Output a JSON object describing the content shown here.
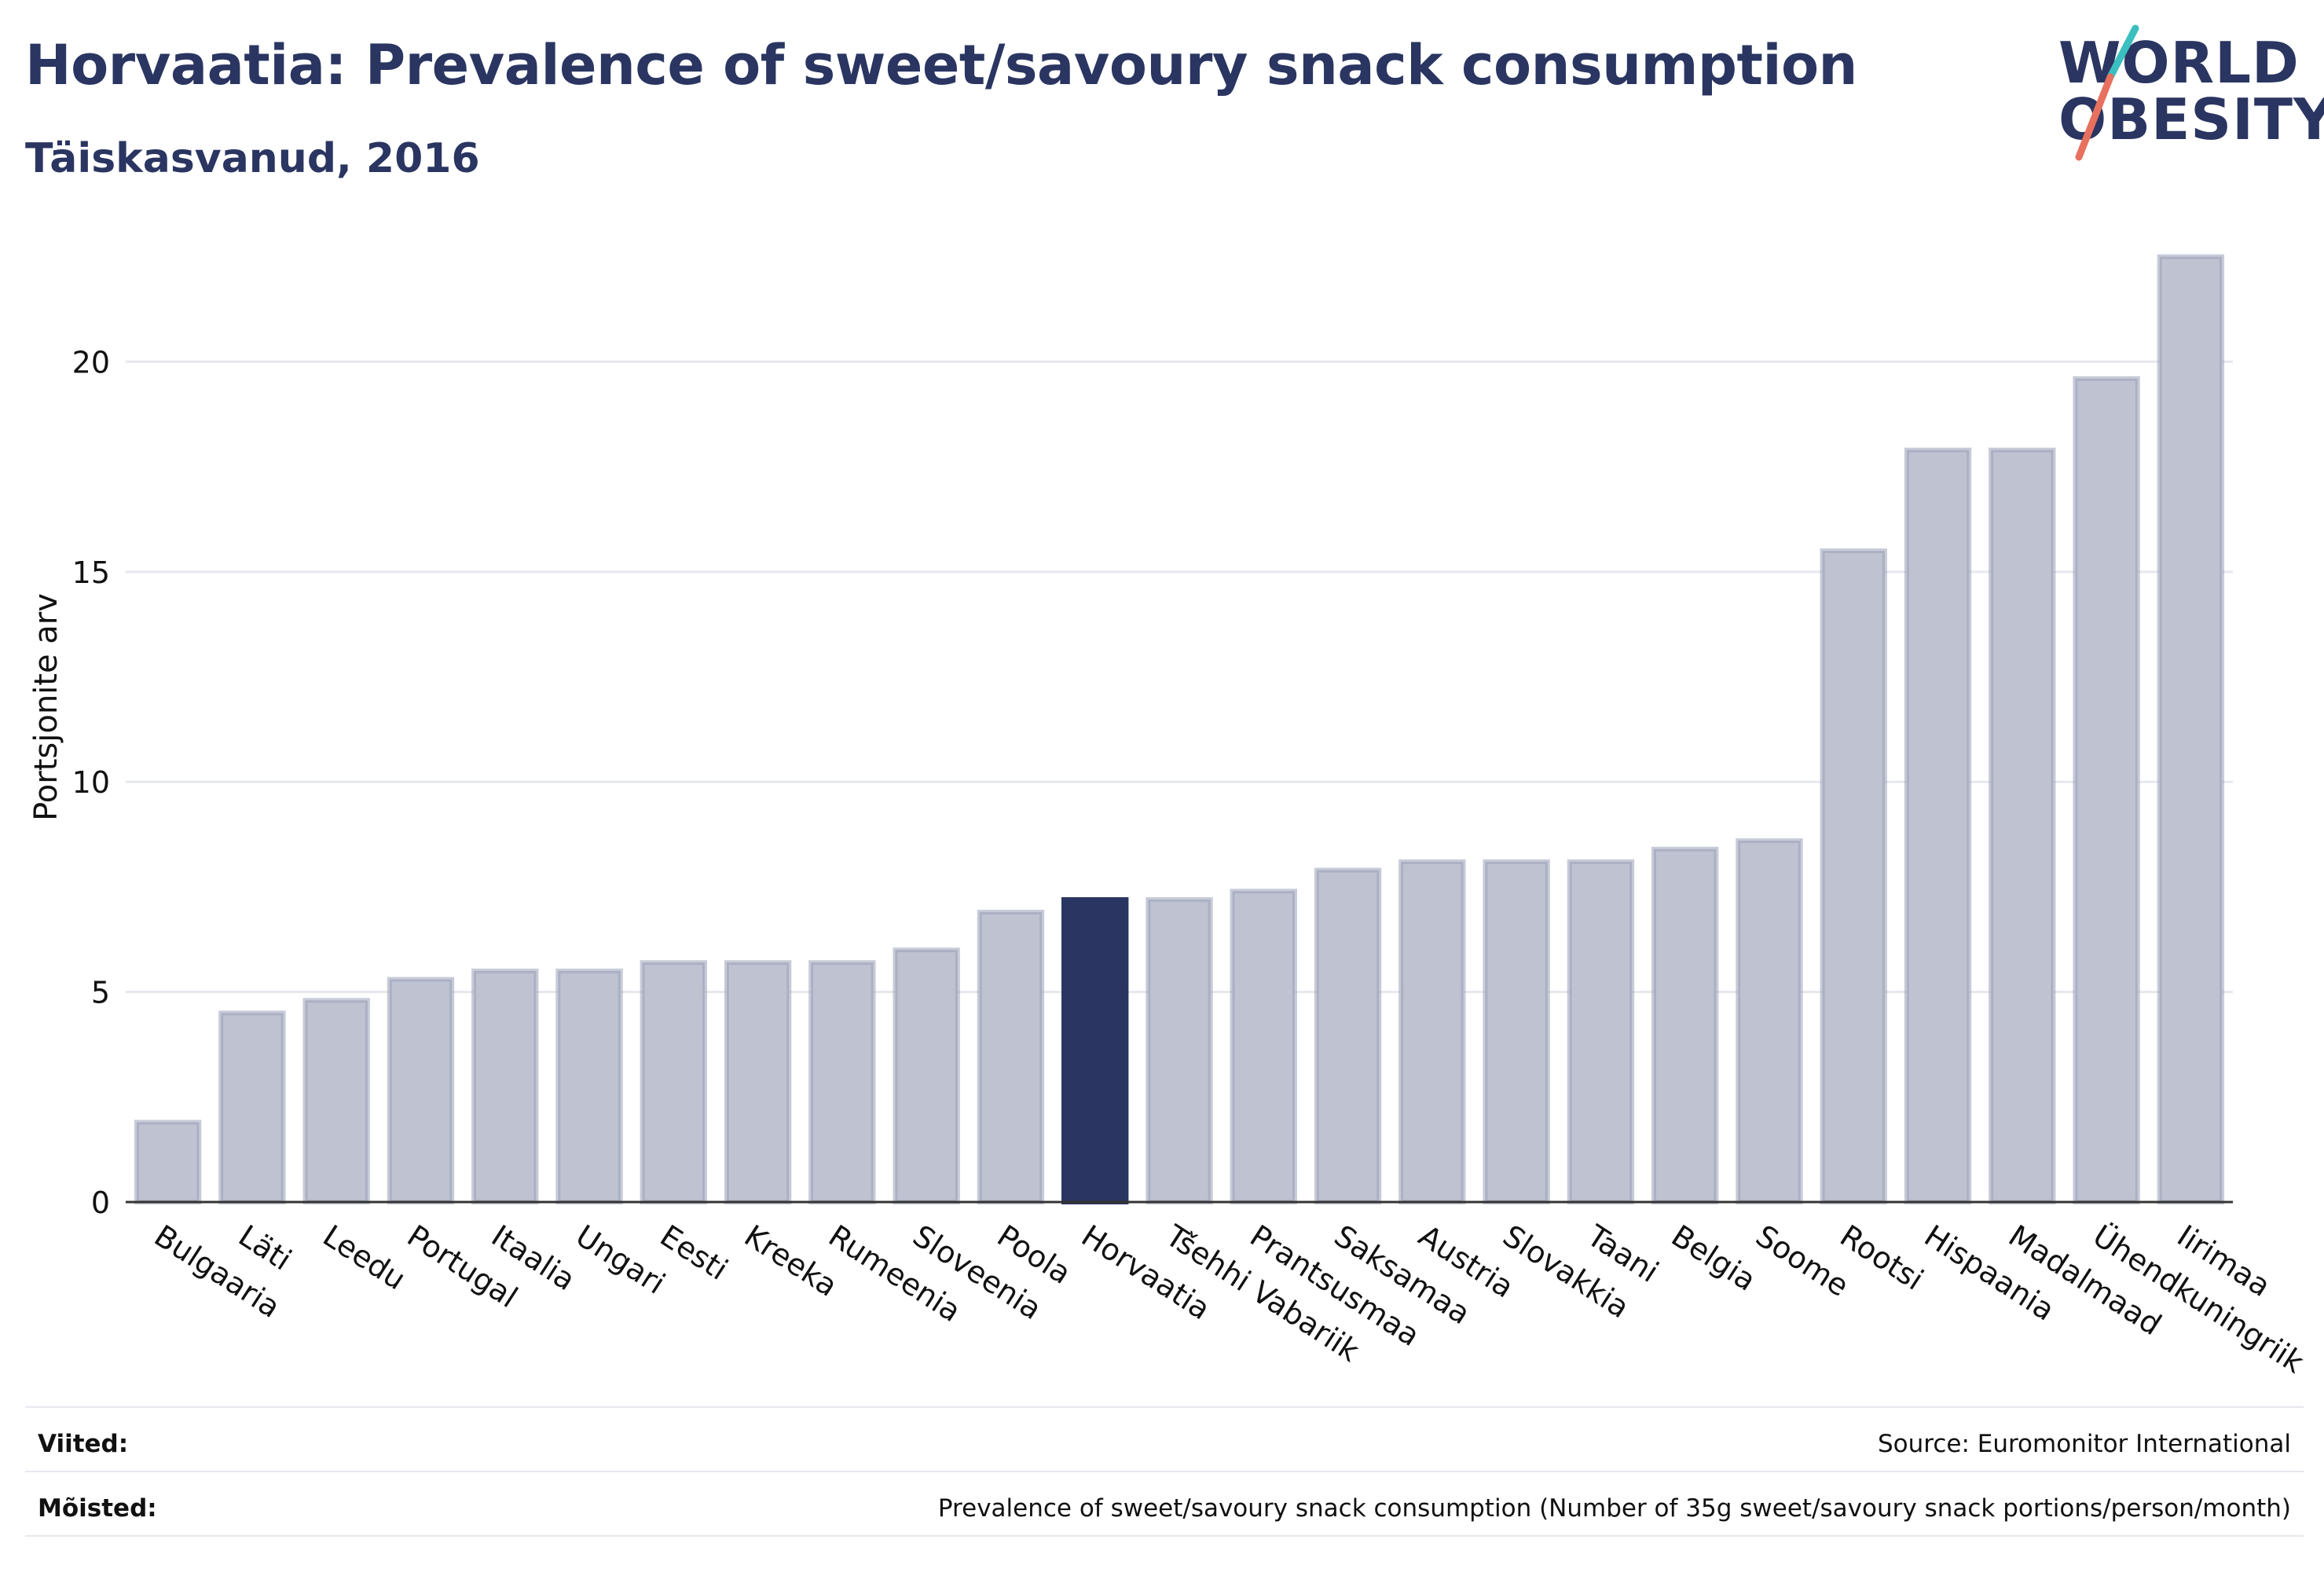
{
  "header": {
    "title": "Horvaatia: Prevalence of sweet/savoury snack consumption",
    "subtitle": "Täiskasvanud, 2016"
  },
  "logo": {
    "line1": "WORLD",
    "line2": "OBESITY"
  },
  "colors": {
    "highlight": "#2a3561",
    "bar_fill": "#bfc3d1",
    "bar_stroke": "#9aa0b8",
    "grid": "#e6e8ee",
    "axis": "#333333",
    "logo_teal": "#3bbfbf",
    "logo_coral": "#e8705f"
  },
  "chart_data": {
    "type": "bar",
    "ylabel": "Portsjonite arv",
    "ylim": [
      0,
      23
    ],
    "yticks": [
      0,
      5,
      10,
      15,
      20
    ],
    "grid": true,
    "highlight": "Horvaatia",
    "categories": [
      "Bulgaaria",
      "Läti",
      "Leedu",
      "Portugal",
      "Itaalia",
      "Ungari",
      "Eesti",
      "Kreeka",
      "Rumeenia",
      "Sloveenia",
      "Poola",
      "Horvaatia",
      "Tšehhi Vabariik",
      "Prantsusmaa",
      "Saksamaa",
      "Austria",
      "Slovakkia",
      "Taani",
      "Belgia",
      "Soome",
      "Rootsi",
      "Hispaania",
      "Madalmaad",
      "Ühendkuningriik",
      "Iirimaa"
    ],
    "values": [
      1.9,
      4.5,
      4.8,
      5.3,
      5.5,
      5.5,
      5.7,
      5.7,
      5.7,
      6.0,
      6.9,
      7.2,
      7.2,
      7.4,
      7.9,
      8.1,
      8.1,
      8.1,
      8.4,
      8.6,
      15.5,
      17.9,
      17.9,
      19.6,
      22.5
    ]
  },
  "footer": {
    "references_label": "Viited:",
    "references_value": "Source: Euromonitor International",
    "definitions_label": "Mõisted:",
    "definitions_value": "Prevalence of sweet/savoury snack consumption (Number of 35g sweet/savoury snack portions/person/month)"
  }
}
